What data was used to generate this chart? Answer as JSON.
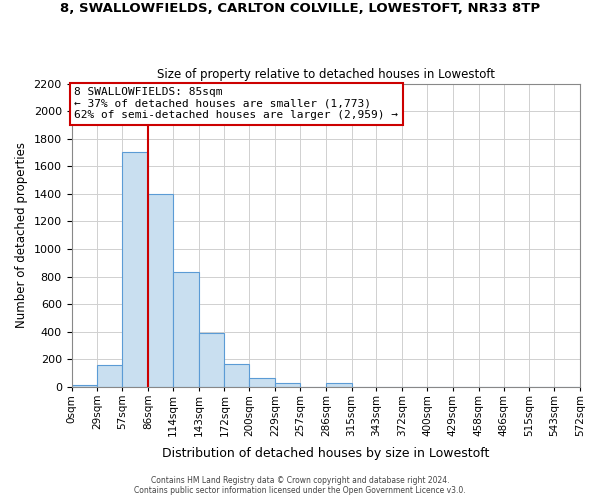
{
  "title_line1": "8, SWALLOWFIELDS, CARLTON COLVILLE, LOWESTOFT, NR33 8TP",
  "title_line2": "Size of property relative to detached houses in Lowestoft",
  "xlabel": "Distribution of detached houses by size in Lowestoft",
  "ylabel": "Number of detached properties",
  "bin_edges": [
    0,
    29,
    57,
    86,
    114,
    143,
    172,
    200,
    229,
    257,
    286,
    315,
    343,
    372,
    400,
    429,
    458,
    486,
    515,
    543,
    572
  ],
  "bar_heights": [
    10,
    155,
    1700,
    1400,
    830,
    390,
    165,
    65,
    30,
    0,
    25,
    0,
    0,
    0,
    0,
    0,
    0,
    0,
    0,
    0
  ],
  "bar_color": "#c9dff0",
  "bar_edgecolor": "#5b9bd5",
  "vline_x": 86,
  "vline_color": "#cc0000",
  "annotation_title": "8 SWALLOWFIELDS: 85sqm",
  "annotation_line1": "← 37% of detached houses are smaller (1,773)",
  "annotation_line2": "62% of semi-detached houses are larger (2,959) →",
  "annotation_box_color": "#ffffff",
  "annotation_box_edgecolor": "#cc0000",
  "ylim": [
    0,
    2200
  ],
  "yticks": [
    0,
    200,
    400,
    600,
    800,
    1000,
    1200,
    1400,
    1600,
    1800,
    2000,
    2200
  ],
  "tick_labels": [
    "0sqm",
    "29sqm",
    "57sqm",
    "86sqm",
    "114sqm",
    "143sqm",
    "172sqm",
    "200sqm",
    "229sqm",
    "257sqm",
    "286sqm",
    "315sqm",
    "343sqm",
    "372sqm",
    "400sqm",
    "429sqm",
    "458sqm",
    "486sqm",
    "515sqm",
    "543sqm",
    "572sqm"
  ],
  "footer_line1": "Contains HM Land Registry data © Crown copyright and database right 2024.",
  "footer_line2": "Contains public sector information licensed under the Open Government Licence v3.0.",
  "background_color": "#ffffff",
  "grid_color": "#d0d0d0",
  "figsize": [
    6.0,
    5.0
  ],
  "dpi": 100
}
